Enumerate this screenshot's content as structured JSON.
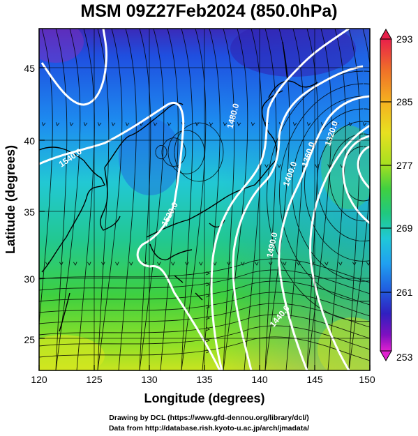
{
  "title": "MSM 09Z27Feb2024 (850.0hPa)",
  "xlabel": "Longitude (degrees)",
  "ylabel": "Latitude  (degrees)",
  "xticks": [
    "120",
    "125",
    "130",
    "135",
    "140",
    "145",
    "150"
  ],
  "yticks": [
    "25",
    "30",
    "35",
    "40",
    "45"
  ],
  "colorbar": {
    "labels": [
      "293",
      "285",
      "277",
      "269",
      "261",
      "253"
    ],
    "colors": [
      "#e8204a",
      "#f07028",
      "#f5b020",
      "#e8e020",
      "#a8e020",
      "#40d040",
      "#20c880",
      "#20c8d8",
      "#20a0f0",
      "#2060e0",
      "#3020c0",
      "#8010c0",
      "#e020d0"
    ]
  },
  "contours": [
    "1520.0",
    "1480.0",
    "1400.0",
    "1360.0",
    "1320.0",
    "1440.0",
    "1540.0",
    "1490.0"
  ],
  "credits": {
    "line1": "Drawing by DCL (https://www.gfd-dennou.org/library/dcl/)",
    "line2": "Data from http://database.rish.kyoto-u.ac.jp/arch/jmadata/"
  }
}
